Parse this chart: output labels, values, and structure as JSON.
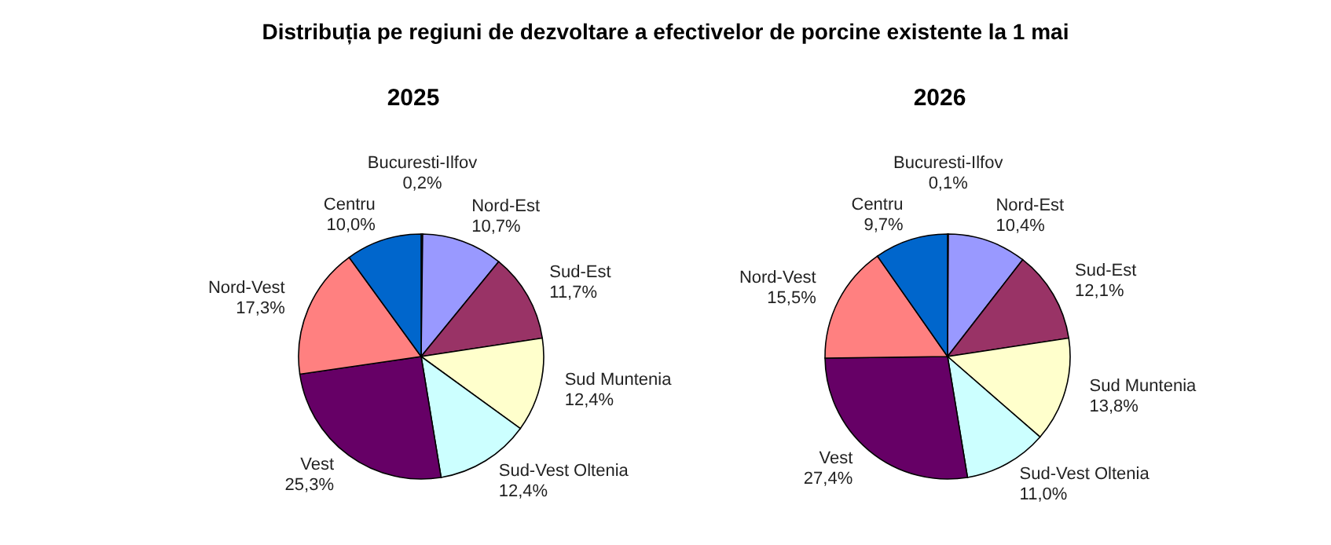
{
  "chart_data": [
    {
      "type": "pie",
      "title": "Distribuția pe regiuni de dezvoltare a efectivelor de porcine existente la 1 mai",
      "subtitle": "2025",
      "categories": [
        "Bucuresti-Ilfov",
        "Nord-Est",
        "Sud-Est",
        "Sud Muntenia",
        "Sud-Vest Oltenia",
        "Vest",
        "Nord-Vest",
        "Centru"
      ],
      "values": [
        0.2,
        10.7,
        11.7,
        12.4,
        12.4,
        25.3,
        17.3,
        10.0
      ],
      "value_labels": [
        "0,2%",
        "10,7%",
        "11,7%",
        "12,4%",
        "12,4%",
        "25,3%",
        "17,3%",
        "10,0%"
      ],
      "colors": [
        "#ccccff",
        "#9999ff",
        "#993366",
        "#ffffcc",
        "#ccffff",
        "#660066",
        "#ff8080",
        "#0066cc"
      ],
      "legend": false
    },
    {
      "type": "pie",
      "subtitle": "2026",
      "categories": [
        "Bucuresti-Ilfov",
        "Nord-Est",
        "Sud-Est",
        "Sud Muntenia",
        "Sud-Vest Oltenia",
        "Vest",
        "Nord-Vest",
        "Centru"
      ],
      "values": [
        0.1,
        10.4,
        12.1,
        13.8,
        11.0,
        27.4,
        15.5,
        9.7
      ],
      "value_labels": [
        "0,1%",
        "10,4%",
        "12,1%",
        "13,8%",
        "11,0%",
        "27,4%",
        "15,5%",
        "9,7%"
      ],
      "colors": [
        "#ccccff",
        "#9999ff",
        "#993366",
        "#ffffcc",
        "#ccffff",
        "#660066",
        "#ff8080",
        "#0066cc"
      ],
      "legend": false
    }
  ]
}
